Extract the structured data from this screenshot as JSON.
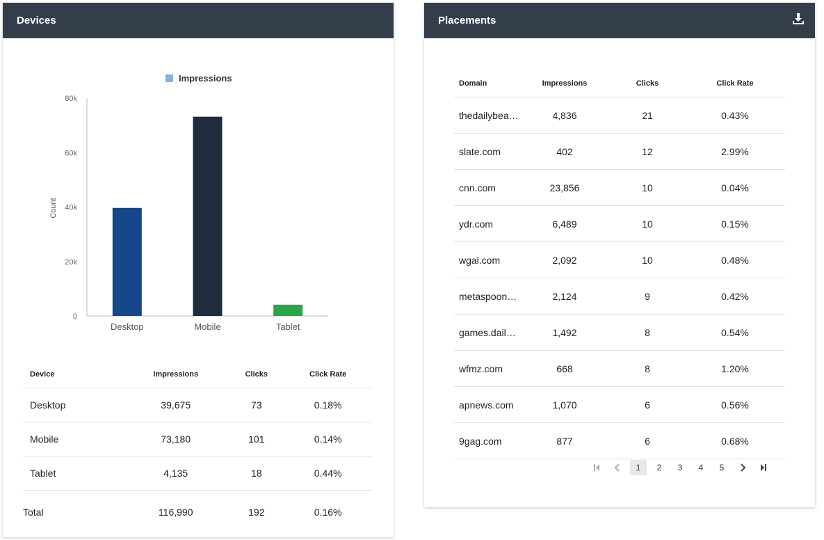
{
  "devices": {
    "title": "Devices",
    "table": {
      "headers": [
        "Device",
        "Impressions",
        "Clicks",
        "Click Rate"
      ],
      "rows": [
        [
          "Desktop",
          "39,675",
          "73",
          "0.18%"
        ],
        [
          "Mobile",
          "73,180",
          "101",
          "0.14%"
        ],
        [
          "Tablet",
          "4,135",
          "18",
          "0.44%"
        ]
      ],
      "total": [
        "Total",
        "116,990",
        "192",
        "0.16%"
      ]
    }
  },
  "chart_data": {
    "type": "bar",
    "categories": [
      "Desktop",
      "Mobile",
      "Tablet"
    ],
    "series": [
      {
        "name": "Impressions",
        "values": [
          39675,
          73180,
          4135
        ]
      }
    ],
    "bar_colors": [
      "#15478a",
      "#1f2c3d",
      "#27a745"
    ],
    "legend_color": "#7fb3e6",
    "ylabel": "Count",
    "ylim": [
      0,
      80000
    ],
    "yticks": [
      0,
      20000,
      40000,
      60000,
      80000
    ],
    "ytick_labels": [
      "0",
      "20k",
      "40k",
      "60k",
      "80k"
    ],
    "legend_position": "top-center",
    "grid": false
  },
  "placements": {
    "title": "Placements",
    "download_icon": "download-icon",
    "table": {
      "headers": [
        "Domain",
        "Impressions",
        "Clicks",
        "Click Rate"
      ],
      "rows": [
        [
          "thedailybeast.com",
          "4,836",
          "21",
          "0.43%"
        ],
        [
          "slate.com",
          "402",
          "12",
          "2.99%"
        ],
        [
          "cnn.com",
          "23,856",
          "10",
          "0.04%"
        ],
        [
          "ydr.com",
          "6,489",
          "10",
          "0.15%"
        ],
        [
          "wgal.com",
          "2,092",
          "10",
          "0.48%"
        ],
        [
          "metaspoon.com",
          "2,124",
          "9",
          "0.42%"
        ],
        [
          "games.dailymail.co.uk",
          "1,492",
          "8",
          "0.54%"
        ],
        [
          "wfmz.com",
          "668",
          "8",
          "1.20%"
        ],
        [
          "apnews.com",
          "1,070",
          "6",
          "0.56%"
        ],
        [
          "9gag.com",
          "877",
          "6",
          "0.68%"
        ]
      ]
    },
    "pagination": {
      "pages": [
        "1",
        "2",
        "3",
        "4",
        "5"
      ],
      "current": "1"
    }
  },
  "colors": {
    "header_bg": "#343e4b",
    "header_text": "#ffffff"
  }
}
